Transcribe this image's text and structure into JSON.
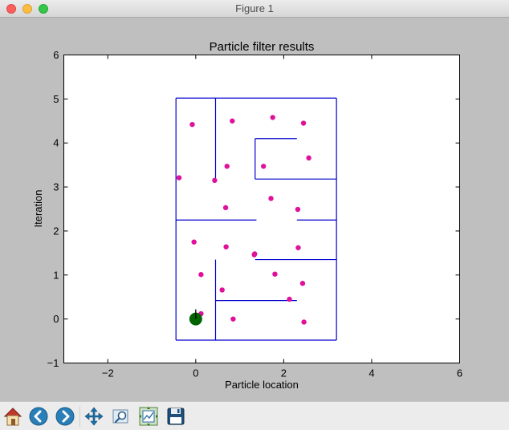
{
  "window": {
    "title": "Figure 1"
  },
  "chart_data": {
    "type": "scatter",
    "title": "Particle filter results",
    "xlabel": "Particle location",
    "ylabel": "Iteration",
    "xlim": [
      -3,
      6
    ],
    "ylim": [
      -1,
      6
    ],
    "xticks": [
      -2,
      0,
      2,
      4,
      6
    ],
    "yticks": [
      -1,
      0,
      1,
      2,
      3,
      4,
      5,
      6
    ],
    "xtick_labels": [
      "−2",
      "0",
      "2",
      "4",
      "6"
    ],
    "ytick_labels": [
      "−1",
      "0",
      "1",
      "2",
      "3",
      "4",
      "5",
      "6"
    ],
    "grid": false,
    "colors": {
      "maze": "#0000cc",
      "particles": "#e0109a",
      "robot": "#006400"
    },
    "maze_segments": [
      [
        [
          -0.45,
          -0.48
        ],
        [
          3.2,
          -0.48
        ]
      ],
      [
        [
          3.2,
          -0.48
        ],
        [
          3.2,
          5.02
        ]
      ],
      [
        [
          3.2,
          5.02
        ],
        [
          -0.45,
          5.02
        ]
      ],
      [
        [
          -0.45,
          5.02
        ],
        [
          -0.45,
          -0.48
        ]
      ],
      [
        [
          0.45,
          5.02
        ],
        [
          0.45,
          3.15
        ]
      ],
      [
        [
          1.35,
          4.1
        ],
        [
          2.3,
          4.1
        ]
      ],
      [
        [
          1.35,
          4.1
        ],
        [
          1.35,
          3.18
        ]
      ],
      [
        [
          1.35,
          3.18
        ],
        [
          3.2,
          3.18
        ]
      ],
      [
        [
          -0.45,
          2.25
        ],
        [
          1.38,
          2.25
        ]
      ],
      [
        [
          2.3,
          2.25
        ],
        [
          3.2,
          2.25
        ]
      ],
      [
        [
          1.35,
          1.35
        ],
        [
          3.2,
          1.35
        ]
      ],
      [
        [
          0.45,
          1.35
        ],
        [
          0.45,
          -0.48
        ]
      ],
      [
        [
          0.45,
          0.42
        ],
        [
          2.3,
          0.42
        ]
      ]
    ],
    "particles": [
      {
        "x": -0.08,
        "y": 4.42
      },
      {
        "x": 0.83,
        "y": 4.5
      },
      {
        "x": 1.75,
        "y": 4.58
      },
      {
        "x": 2.45,
        "y": 4.45
      },
      {
        "x": 2.57,
        "y": 3.66
      },
      {
        "x": -0.38,
        "y": 3.21
      },
      {
        "x": 0.71,
        "y": 3.47
      },
      {
        "x": 1.54,
        "y": 3.47
      },
      {
        "x": 0.43,
        "y": 3.15
      },
      {
        "x": 1.71,
        "y": 2.74
      },
      {
        "x": 0.68,
        "y": 2.53
      },
      {
        "x": 2.32,
        "y": 2.49
      },
      {
        "x": -0.04,
        "y": 1.75
      },
      {
        "x": 0.69,
        "y": 1.64
      },
      {
        "x": 2.33,
        "y": 1.62
      },
      {
        "x": 1.33,
        "y": 1.46
      },
      {
        "x": 1.34,
        "y": 1.48
      },
      {
        "x": 0.12,
        "y": 1.01
      },
      {
        "x": 1.8,
        "y": 1.02
      },
      {
        "x": 2.43,
        "y": 0.81
      },
      {
        "x": 0.6,
        "y": 0.66
      },
      {
        "x": 2.13,
        "y": 0.45
      },
      {
        "x": 0.12,
        "y": 0.12
      },
      {
        "x": 0.85,
        "y": 0.0
      },
      {
        "x": 2.46,
        "y": -0.07
      }
    ],
    "robot": {
      "x": 0.0,
      "y": 0.0,
      "heading_deg": 90
    }
  },
  "toolbar": {
    "buttons": [
      {
        "name": "home-button",
        "icon": "home-icon"
      },
      {
        "name": "back-button",
        "icon": "arrow-left-icon"
      },
      {
        "name": "forward-button",
        "icon": "arrow-right-icon"
      },
      {
        "name": "pan-button",
        "icon": "move-arrows-icon"
      },
      {
        "name": "zoom-button",
        "icon": "zoom-rect-icon"
      },
      {
        "name": "subplots-button",
        "icon": "subplots-config-icon"
      },
      {
        "name": "save-button",
        "icon": "floppy-disk-icon"
      }
    ]
  }
}
